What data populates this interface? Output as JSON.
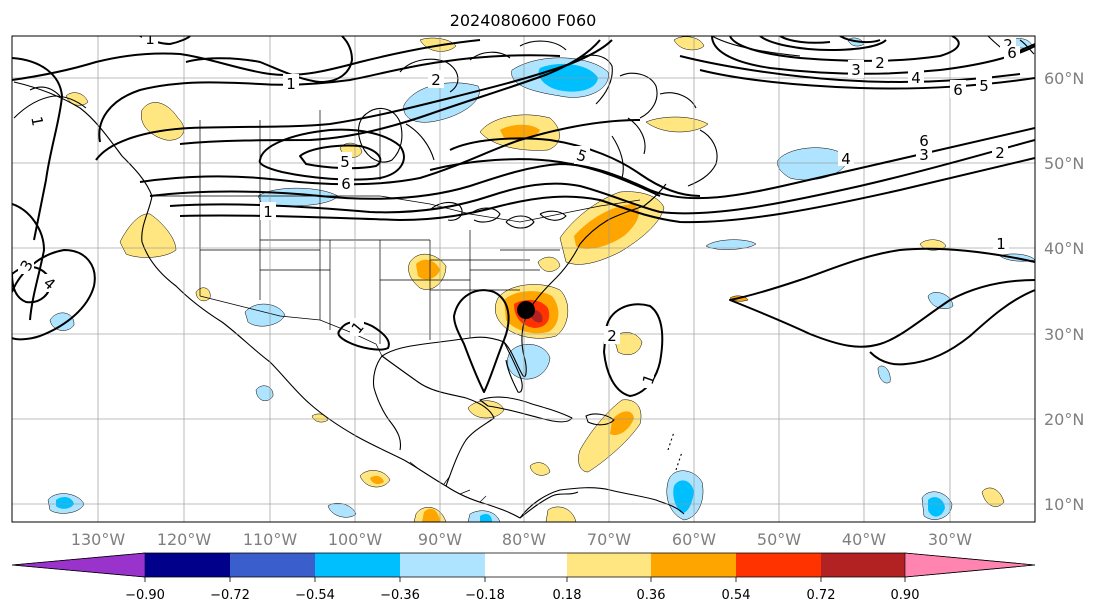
{
  "title": "2024080600 F060",
  "lon_labels": [
    "130°W",
    "120°W",
    "110°W",
    "100°W",
    "90°W",
    "80°W",
    "70°W",
    "60°W",
    "50°W",
    "40°W",
    "30°W"
  ],
  "lat_labels": [
    "60°N",
    "50°N",
    "40°N",
    "30°N",
    "20°N",
    "10°N"
  ],
  "colorbar": {
    "ticks": [
      "−0.90",
      "−0.72",
      "−0.54",
      "−0.36",
      "−0.18",
      "0.18",
      "0.36",
      "0.54",
      "0.72",
      "0.90"
    ],
    "colors": [
      "#9a33cc",
      "#00008b",
      "#3a5fcd",
      "#00bfff",
      "#aee4ff",
      "#ffffff",
      "#ffe680",
      "#ffa500",
      "#ff3300",
      "#b22222",
      "#ff85b0"
    ]
  },
  "contour_labels": [
    "1",
    "1",
    "1",
    "1",
    "1",
    "1",
    "1",
    "2",
    "2",
    "2",
    "2",
    "2",
    "3",
    "3",
    "3",
    "4",
    "4",
    "4",
    "5",
    "5",
    "5",
    "6",
    "6",
    "6",
    "6"
  ],
  "storm_marker": "storm-center"
}
